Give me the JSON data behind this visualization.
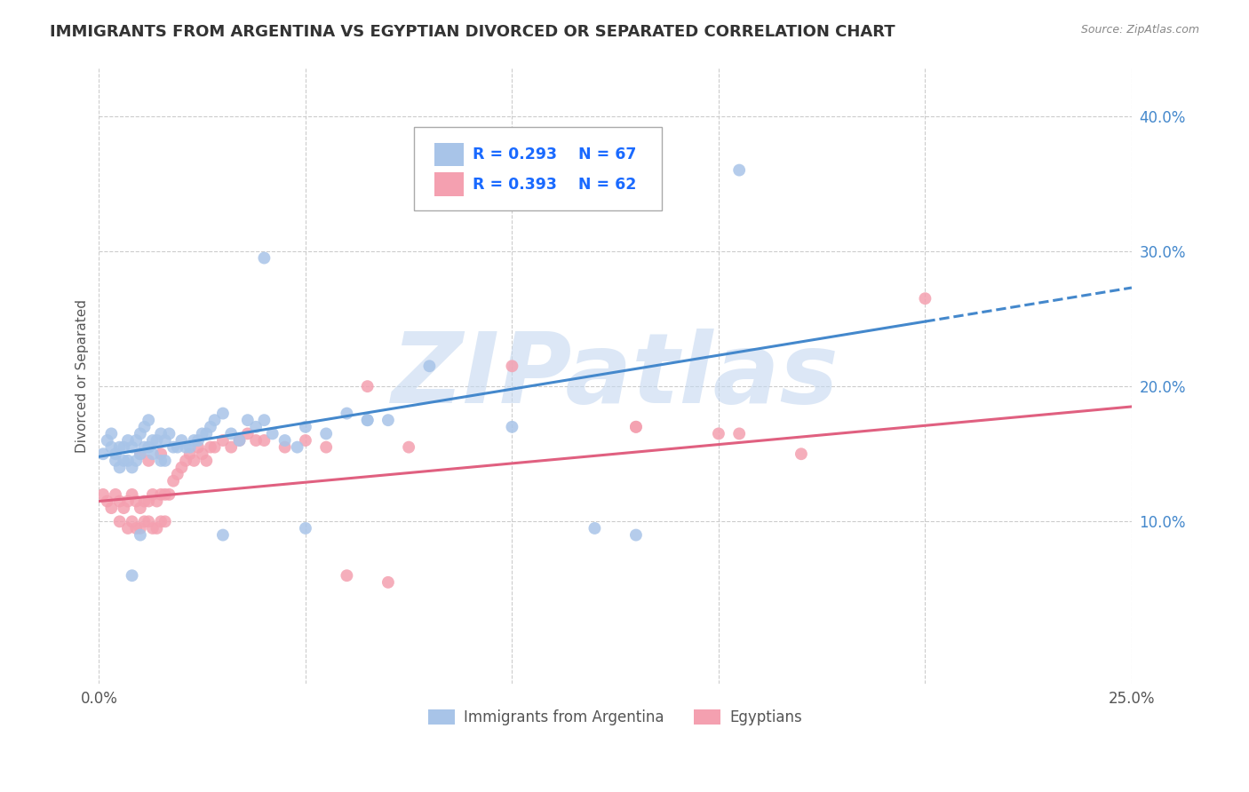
{
  "title": "IMMIGRANTS FROM ARGENTINA VS EGYPTIAN DIVORCED OR SEPARATED CORRELATION CHART",
  "source": "Source: ZipAtlas.com",
  "ylabel": "Divorced or Separated",
  "xlim": [
    0.0,
    0.25
  ],
  "ylim": [
    -0.02,
    0.435
  ],
  "yticks_right": [
    0.1,
    0.2,
    0.3,
    0.4
  ],
  "ytick_labels_right": [
    "10.0%",
    "20.0%",
    "30.0%",
    "40.0%"
  ],
  "xtick_labels": [
    "0.0%",
    "25.0%"
  ],
  "xtick_vals": [
    0.0,
    0.25
  ],
  "series1_label": "Immigrants from Argentina",
  "series1_color": "#a8c4e8",
  "series1_R": "0.293",
  "series1_N": "67",
  "series2_label": "Egyptians",
  "series2_color": "#f4a0b0",
  "series2_R": "0.393",
  "series2_N": "62",
  "legend_text_color": "#1a6aff",
  "watermark": "ZIPatlas",
  "watermark_color": "#c5d8f0",
  "background_color": "#ffffff",
  "grid_color": "#cccccc",
  "title_color": "#333333",
  "blue_line_x0": 0.0,
  "blue_line_y0": 0.148,
  "blue_line_x1": 0.2,
  "blue_line_y1": 0.248,
  "blue_line_xd": 0.25,
  "blue_line_yd": 0.273,
  "pink_line_x0": 0.0,
  "pink_line_y0": 0.115,
  "pink_line_x1": 0.25,
  "pink_line_y1": 0.185,
  "series1_x": [
    0.001,
    0.002,
    0.003,
    0.003,
    0.004,
    0.004,
    0.005,
    0.005,
    0.006,
    0.006,
    0.007,
    0.007,
    0.008,
    0.008,
    0.009,
    0.009,
    0.01,
    0.01,
    0.011,
    0.011,
    0.012,
    0.012,
    0.013,
    0.013,
    0.014,
    0.015,
    0.015,
    0.016,
    0.016,
    0.017,
    0.018,
    0.019,
    0.02,
    0.021,
    0.022,
    0.023,
    0.024,
    0.025,
    0.026,
    0.027,
    0.028,
    0.03,
    0.032,
    0.034,
    0.036,
    0.038,
    0.04,
    0.042,
    0.045,
    0.048,
    0.05,
    0.055,
    0.06,
    0.065,
    0.07,
    0.08,
    0.095,
    0.1,
    0.12,
    0.13,
    0.155,
    0.03,
    0.04,
    0.05,
    0.065,
    0.01,
    0.008
  ],
  "series1_y": [
    0.15,
    0.16,
    0.155,
    0.165,
    0.15,
    0.145,
    0.155,
    0.14,
    0.155,
    0.145,
    0.16,
    0.145,
    0.155,
    0.14,
    0.16,
    0.145,
    0.165,
    0.15,
    0.17,
    0.155,
    0.175,
    0.155,
    0.16,
    0.15,
    0.16,
    0.165,
    0.145,
    0.16,
    0.145,
    0.165,
    0.155,
    0.155,
    0.16,
    0.155,
    0.155,
    0.16,
    0.16,
    0.165,
    0.165,
    0.17,
    0.175,
    0.18,
    0.165,
    0.16,
    0.175,
    0.17,
    0.175,
    0.165,
    0.16,
    0.155,
    0.17,
    0.165,
    0.18,
    0.175,
    0.175,
    0.215,
    0.36,
    0.17,
    0.095,
    0.09,
    0.36,
    0.09,
    0.295,
    0.095,
    0.175,
    0.09,
    0.06
  ],
  "series2_x": [
    0.001,
    0.002,
    0.003,
    0.004,
    0.005,
    0.005,
    0.006,
    0.007,
    0.007,
    0.008,
    0.008,
    0.009,
    0.009,
    0.01,
    0.01,
    0.011,
    0.011,
    0.012,
    0.012,
    0.013,
    0.013,
    0.014,
    0.014,
    0.015,
    0.015,
    0.016,
    0.016,
    0.017,
    0.018,
    0.019,
    0.02,
    0.021,
    0.022,
    0.023,
    0.024,
    0.025,
    0.026,
    0.027,
    0.028,
    0.03,
    0.032,
    0.034,
    0.036,
    0.038,
    0.04,
    0.045,
    0.05,
    0.055,
    0.065,
    0.075,
    0.1,
    0.13,
    0.15,
    0.2,
    0.01,
    0.012,
    0.015,
    0.13,
    0.155,
    0.17,
    0.06,
    0.07
  ],
  "series2_y": [
    0.12,
    0.115,
    0.11,
    0.12,
    0.115,
    0.1,
    0.11,
    0.115,
    0.095,
    0.12,
    0.1,
    0.115,
    0.095,
    0.11,
    0.095,
    0.115,
    0.1,
    0.115,
    0.1,
    0.12,
    0.095,
    0.115,
    0.095,
    0.12,
    0.1,
    0.12,
    0.1,
    0.12,
    0.13,
    0.135,
    0.14,
    0.145,
    0.15,
    0.145,
    0.155,
    0.15,
    0.145,
    0.155,
    0.155,
    0.16,
    0.155,
    0.16,
    0.165,
    0.16,
    0.16,
    0.155,
    0.16,
    0.155,
    0.2,
    0.155,
    0.215,
    0.17,
    0.165,
    0.265,
    0.15,
    0.145,
    0.15,
    0.17,
    0.165,
    0.15,
    0.06,
    0.055
  ]
}
